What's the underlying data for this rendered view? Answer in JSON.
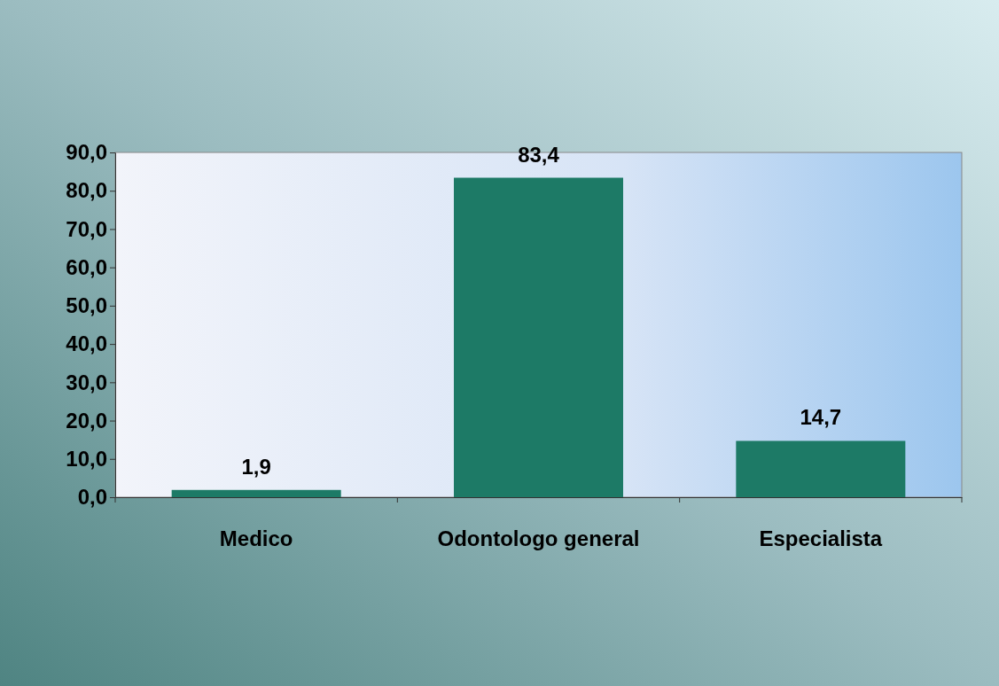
{
  "chart_data": {
    "type": "bar",
    "categories": [
      "Medico",
      "Odontologo general",
      "Especialista"
    ],
    "values": [
      1.9,
      83.4,
      14.7
    ],
    "value_labels": [
      "1,9",
      "83,4",
      "14,7"
    ],
    "color": "#1d7a66",
    "ylim": [
      0,
      90
    ],
    "yticks": [
      {
        "value": 0,
        "label": "0,0"
      },
      {
        "value": 10,
        "label": "10,0"
      },
      {
        "value": 20,
        "label": "20,0"
      },
      {
        "value": 30,
        "label": "30,0"
      },
      {
        "value": 40,
        "label": "40,0"
      },
      {
        "value": 50,
        "label": "50,0"
      },
      {
        "value": 60,
        "label": "60,0"
      },
      {
        "value": 70,
        "label": "70,0"
      },
      {
        "value": 80,
        "label": "80,0"
      },
      {
        "value": 90,
        "label": "90,0"
      }
    ],
    "grid": false
  }
}
